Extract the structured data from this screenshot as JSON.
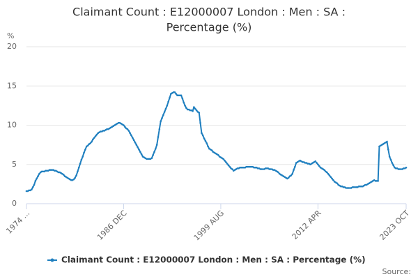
{
  "chart_data": {
    "type": "line",
    "title": [
      "Claimant Count : E12000007 London : Men : SA :",
      "Percentage (%)"
    ],
    "y_label": "%",
    "source": "Source:",
    "categories": [
      "1974 ...",
      null,
      null,
      null,
      null,
      null,
      null,
      null,
      null,
      null,
      null,
      null,
      null,
      null,
      null,
      null,
      null,
      null,
      null,
      null,
      null,
      null,
      null,
      null,
      null,
      null,
      null,
      null,
      null,
      null,
      null,
      null,
      null,
      null,
      null,
      null,
      null,
      null,
      null,
      null,
      null,
      null,
      null,
      null,
      null,
      null,
      null,
      null,
      null,
      null,
      null,
      null,
      null,
      null,
      null,
      null,
      null,
      null,
      null,
      null,
      null,
      null,
      null,
      null,
      null,
      null,
      null,
      null,
      null,
      null,
      null,
      null,
      null,
      null,
      null,
      null,
      "1986 DEC",
      null,
      null,
      null,
      null,
      null,
      null,
      null,
      null,
      null,
      null,
      null,
      null,
      null,
      null,
      null,
      null,
      null,
      null,
      null,
      null,
      null,
      null,
      null,
      null,
      null,
      null,
      null,
      null,
      null,
      null,
      null,
      null,
      null,
      null,
      null,
      null,
      null,
      null,
      null,
      null,
      null,
      null,
      null,
      null,
      null,
      null,
      null,
      null,
      null,
      null,
      null,
      null,
      null,
      null,
      null,
      null,
      null,
      null,
      null,
      null,
      null,
      null,
      null,
      null,
      null,
      null,
      null,
      null,
      null,
      null,
      null,
      null,
      null,
      null,
      null,
      "1999 AUG",
      null,
      null,
      null,
      null,
      null,
      null,
      null,
      null,
      null,
      null,
      null,
      null,
      null,
      null,
      null,
      null,
      null,
      null,
      null,
      null,
      null,
      null,
      null,
      null,
      null,
      null,
      null,
      null,
      null,
      null,
      null,
      null,
      null,
      null,
      null,
      null,
      null,
      null,
      null,
      null,
      null,
      null,
      null,
      null,
      null,
      null,
      null,
      null,
      null,
      null,
      null,
      null,
      null,
      null,
      null,
      null,
      null,
      null,
      null,
      null,
      null,
      null,
      null,
      null,
      null,
      null,
      null,
      null,
      null,
      null,
      null,
      null,
      null,
      null,
      null,
      "2012 APR",
      null,
      null,
      null,
      null,
      null,
      null,
      null,
      null,
      null,
      null,
      null,
      null,
      null,
      null,
      null,
      null,
      null,
      null,
      null,
      null,
      null,
      null,
      null,
      null,
      null,
      null,
      null,
      null,
      null,
      null,
      null,
      null,
      null,
      null,
      null,
      null,
      null,
      null,
      null,
      null,
      null,
      null,
      null,
      null,
      null,
      null,
      null,
      null,
      null,
      null,
      null,
      null,
      null,
      null,
      null,
      null,
      null,
      null,
      null,
      null,
      null,
      null,
      null,
      null,
      null,
      null,
      null,
      null,
      "2023 OCT"
    ],
    "series": [
      {
        "name": "Claimant Count : E12000007 London : Men : SA : Percentage (%)",
        "color": "#1f7fbf",
        "values": [
          1.6,
          1.6,
          1.7,
          1.7,
          1.8,
          2.1,
          2.4,
          2.9,
          3.2,
          3.5,
          3.8,
          4.0,
          4.1,
          4.1,
          4.1,
          4.2,
          4.2,
          4.2,
          4.3,
          4.3,
          4.3,
          4.3,
          4.2,
          4.2,
          4.1,
          4.0,
          4.0,
          3.9,
          3.8,
          3.7,
          3.5,
          3.4,
          3.3,
          3.2,
          3.1,
          3.0,
          3.0,
          3.1,
          3.3,
          3.6,
          4.1,
          4.6,
          5.1,
          5.6,
          6.0,
          6.5,
          6.9,
          7.3,
          7.4,
          7.6,
          7.7,
          7.9,
          8.2,
          8.4,
          8.6,
          8.8,
          9.0,
          9.1,
          9.2,
          9.2,
          9.3,
          9.3,
          9.4,
          9.5,
          9.5,
          9.6,
          9.7,
          9.8,
          9.9,
          10.0,
          10.1,
          10.2,
          10.3,
          10.3,
          10.2,
          10.1,
          10.0,
          9.8,
          9.6,
          9.5,
          9.3,
          9.0,
          8.7,
          8.4,
          8.1,
          7.8,
          7.5,
          7.2,
          6.9,
          6.6,
          6.3,
          6.0,
          5.9,
          5.8,
          5.7,
          5.7,
          5.7,
          5.7,
          5.8,
          6.2,
          6.6,
          7.0,
          7.5,
          8.5,
          9.5,
          10.5,
          10.9,
          11.3,
          11.7,
          12.1,
          12.5,
          13.0,
          13.5,
          14.0,
          14.1,
          14.2,
          14.2,
          14.0,
          13.8,
          13.8,
          13.8,
          13.8,
          13.4,
          12.9,
          12.5,
          12.2,
          12.0,
          12.0,
          11.9,
          11.9,
          11.8,
          12.3,
          12.1,
          11.9,
          11.7,
          11.6,
          10.3,
          9.0,
          8.7,
          8.3,
          8.0,
          7.7,
          7.3,
          7.0,
          6.9,
          6.8,
          6.6,
          6.5,
          6.4,
          6.3,
          6.2,
          6.0,
          5.9,
          5.8,
          5.7,
          5.5,
          5.3,
          5.1,
          4.9,
          4.7,
          4.5,
          4.4,
          4.2,
          4.3,
          4.4,
          4.5,
          4.5,
          4.6,
          4.6,
          4.6,
          4.6,
          4.6,
          4.7,
          4.7,
          4.7,
          4.7,
          4.7,
          4.7,
          4.6,
          4.6,
          4.6,
          4.5,
          4.5,
          4.4,
          4.4,
          4.4,
          4.4,
          4.5,
          4.5,
          4.5,
          4.4,
          4.4,
          4.4,
          4.3,
          4.3,
          4.2,
          4.1,
          4.0,
          3.8,
          3.7,
          3.6,
          3.5,
          3.4,
          3.3,
          3.2,
          3.3,
          3.5,
          3.6,
          3.8,
          4.3,
          4.7,
          5.2,
          5.3,
          5.4,
          5.5,
          5.4,
          5.3,
          5.3,
          5.2,
          5.2,
          5.1,
          5.1,
          5.0,
          5.1,
          5.2,
          5.3,
          5.4,
          5.2,
          5.0,
          4.8,
          4.6,
          4.5,
          4.4,
          4.3,
          4.1,
          4.0,
          3.8,
          3.6,
          3.4,
          3.2,
          3.0,
          2.8,
          2.7,
          2.6,
          2.4,
          2.3,
          2.2,
          2.2,
          2.1,
          2.1,
          2.0,
          2.0,
          2.0,
          2.0,
          2.0,
          2.1,
          2.1,
          2.1,
          2.1,
          2.1,
          2.2,
          2.2,
          2.2,
          2.2,
          2.3,
          2.4,
          2.4,
          2.5,
          2.6,
          2.7,
          2.8,
          2.9,
          3.0,
          2.9,
          2.9,
          2.9,
          7.3,
          7.4,
          7.5,
          7.6,
          7.7,
          7.8,
          7.9,
          6.9,
          6.0,
          5.6,
          5.2,
          4.9,
          4.6,
          4.5,
          4.5,
          4.4,
          4.4,
          4.4,
          4.4,
          4.5,
          4.5,
          4.6
        ]
      }
    ],
    "ylim": [
      0,
      20
    ],
    "yticks": [
      0,
      5,
      10,
      15,
      20
    ],
    "grid": true
  }
}
